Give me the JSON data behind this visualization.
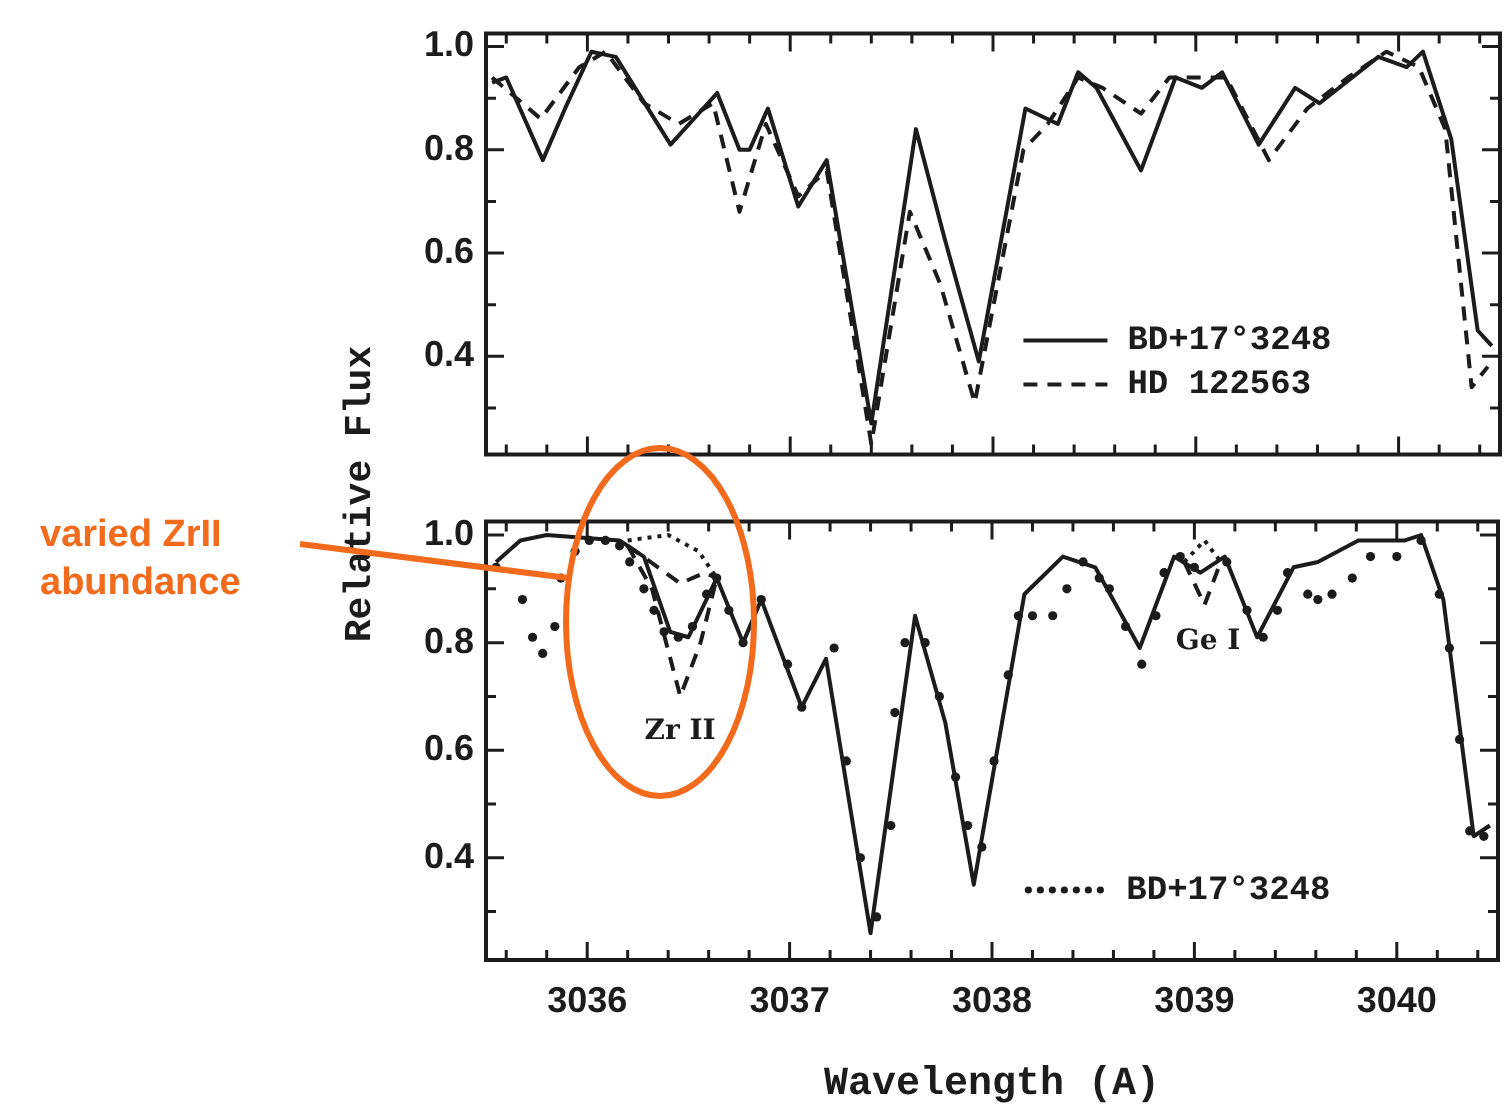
{
  "chart_data": [
    {
      "type": "line",
      "ylabel": "Relative Flux",
      "tick_labels": "y",
      "legend": "bottom right",
      "xlim": [
        3035.5,
        3040.5
      ],
      "xticks": [
        {
          "value": 3035.6,
          "label": null
        },
        {
          "value": 3035.8,
          "label": null
        },
        3036,
        {
          "value": 3036.2,
          "label": null
        },
        {
          "value": 3036.4,
          "label": null
        },
        {
          "value": 3036.6,
          "label": null
        },
        {
          "value": 3036.8,
          "label": null
        },
        3037,
        {
          "value": 3037.2,
          "label": null
        },
        {
          "value": 3037.4,
          "label": null
        },
        {
          "value": 3037.6,
          "label": null
        },
        {
          "value": 3037.8,
          "label": null
        },
        3038,
        {
          "value": 3038.2,
          "label": null
        },
        {
          "value": 3038.4,
          "label": null
        },
        {
          "value": 3038.6,
          "label": null
        },
        {
          "value": 3038.8,
          "label": null
        },
        3039,
        {
          "value": 3039.2,
          "label": null
        },
        {
          "value": 3039.4,
          "label": null
        },
        {
          "value": 3039.6,
          "label": null
        },
        {
          "value": 3039.8,
          "label": null
        },
        3040,
        {
          "value": 3040.2,
          "label": null
        },
        {
          "value": 3040.4,
          "label": null
        }
      ],
      "ylim": [
        0.21,
        1.025
      ],
      "yticks": [
        {
          "value": 0.3,
          "label": null
        },
        0.4,
        {
          "value": 0.5,
          "label": null
        },
        0.6,
        {
          "value": 0.7,
          "label": null
        },
        0.8,
        {
          "value": 0.9,
          "label": null
        },
        {
          "value": 1,
          "label": "1.0"
        }
      ],
      "series": [
        {
          "name": "BD+17°3248",
          "color": "#1c1c1c",
          "line_style": "solid",
          "x": [
            3035.53,
            3035.6,
            3035.78,
            3035.89,
            3036.02,
            3036.14,
            3036.41,
            3036.64,
            3036.75,
            3036.8,
            3036.89,
            3037.04,
            3037.18,
            3037.4,
            3037.62,
            3037.76,
            3037.93,
            3038.16,
            3038.32,
            3038.42,
            3038.51,
            3038.73,
            3038.9,
            3039.03,
            3039.13,
            3039.31,
            3039.49,
            3039.61,
            3039.9,
            3040.04,
            3040.12,
            3040.26,
            3040.39,
            3040.46
          ],
          "values": [
            0.93,
            0.94,
            0.78,
            0.88,
            0.99,
            0.98,
            0.81,
            0.91,
            0.8,
            0.8,
            0.88,
            0.69,
            0.78,
            0.27,
            0.84,
            0.63,
            0.39,
            0.88,
            0.85,
            0.95,
            0.92,
            0.76,
            0.94,
            0.92,
            0.95,
            0.81,
            0.92,
            0.89,
            0.98,
            0.96,
            0.99,
            0.82,
            0.45,
            0.42
          ]
        },
        {
          "name": "HD 122563",
          "color": "#1c1c1c",
          "line_style": "dashed",
          "x": [
            3035.53,
            3035.77,
            3035.96,
            3036.09,
            3036.28,
            3036.45,
            3036.62,
            3036.75,
            3036.88,
            3037.04,
            3037.18,
            3037.4,
            3037.59,
            3037.74,
            3037.91,
            3038.15,
            3038.27,
            3038.42,
            3038.54,
            3038.73,
            3038.87,
            3039.03,
            3039.15,
            3039.36,
            3039.55,
            3039.75,
            3039.94,
            3040.1,
            3040.23,
            3040.36,
            3040.44
          ],
          "values": [
            0.94,
            0.86,
            0.96,
            0.99,
            0.89,
            0.85,
            0.89,
            0.68,
            0.85,
            0.71,
            0.76,
            0.23,
            0.68,
            0.54,
            0.31,
            0.8,
            0.85,
            0.94,
            0.92,
            0.87,
            0.94,
            0.94,
            0.94,
            0.78,
            0.88,
            0.94,
            0.99,
            0.96,
            0.84,
            0.34,
            0.38
          ]
        }
      ]
    },
    {
      "type": "line",
      "xlabel": "Wavelength (A)",
      "legend": "bottom right",
      "xlim": [
        3035.5,
        3040.5
      ],
      "xticks": [
        {
          "value": 3035.6,
          "label": null
        },
        {
          "value": 3035.8,
          "label": null
        },
        3036,
        {
          "value": 3036.2,
          "label": null
        },
        {
          "value": 3036.4,
          "label": null
        },
        {
          "value": 3036.6,
          "label": null
        },
        {
          "value": 3036.8,
          "label": null
        },
        3037,
        {
          "value": 3037.2,
          "label": null
        },
        {
          "value": 3037.4,
          "label": null
        },
        {
          "value": 3037.6,
          "label": null
        },
        {
          "value": 3037.8,
          "label": null
        },
        3038,
        {
          "value": 3038.2,
          "label": null
        },
        {
          "value": 3038.4,
          "label": null
        },
        {
          "value": 3038.6,
          "label": null
        },
        {
          "value": 3038.8,
          "label": null
        },
        3039,
        {
          "value": 3039.2,
          "label": null
        },
        {
          "value": 3039.4,
          "label": null
        },
        {
          "value": 3039.6,
          "label": null
        },
        {
          "value": 3039.8,
          "label": null
        },
        3040,
        {
          "value": 3040.2,
          "label": null
        },
        {
          "value": 3040.4,
          "label": null
        }
      ],
      "ylim": [
        0.21,
        1.025
      ],
      "yticks": [
        {
          "value": 0.3,
          "label": null
        },
        0.4,
        {
          "value": 0.5,
          "label": null
        },
        0.6,
        {
          "value": 0.7,
          "label": null
        },
        0.8,
        {
          "value": 0.9,
          "label": null
        },
        {
          "value": 1,
          "label": "1.0"
        }
      ],
      "annotations": [
        "varied ZrII abundance",
        "Zr II",
        "Ge I"
      ],
      "series": [
        {
          "color": "#1c1c1c",
          "line_style": "solid",
          "x": [
            3035.55,
            3035.67,
            3035.8,
            3036.16,
            3036.28,
            3036.41,
            3036.5,
            3036.64,
            3036.77,
            3036.86,
            3037.06,
            3037.18,
            3037.4,
            3037.62,
            3037.77,
            3037.91,
            3038.16,
            3038.35,
            3038.51,
            3038.73,
            3038.9,
            3039.03,
            3039.15,
            3039.31,
            3039.49,
            3039.61,
            3039.81,
            3040.04,
            3040.12,
            3040.23,
            3040.38,
            3040.46
          ],
          "values": [
            0.95,
            0.99,
            1.0,
            0.99,
            0.96,
            0.82,
            0.81,
            0.92,
            0.8,
            0.88,
            0.68,
            0.77,
            0.26,
            0.85,
            0.65,
            0.35,
            0.89,
            0.96,
            0.94,
            0.79,
            0.96,
            0.93,
            0.96,
            0.81,
            0.94,
            0.95,
            0.99,
            0.99,
            1.0,
            0.88,
            0.44,
            0.46
          ]
        },
        {
          "color": "#1c1c1c",
          "line_style": "dashed",
          "x": [
            3036.2,
            3036.35,
            3036.46,
            3036.58,
            3036.64
          ],
          "values": [
            0.98,
            0.94,
            0.91,
            0.93,
            0.92
          ]
        },
        {
          "color": "#1c1c1c",
          "line_style": "dashed",
          "x": [
            3036.2,
            3036.32,
            3036.46,
            3036.56,
            3036.64
          ],
          "values": [
            0.98,
            0.9,
            0.7,
            0.8,
            0.92
          ]
        },
        {
          "color": "#1c1c1c",
          "line_style": "dashed",
          "x": [
            3038.95,
            3039.05,
            3039.13
          ],
          "values": [
            0.95,
            0.87,
            0.95
          ]
        },
        {
          "color": "#1c1c1c",
          "line_style": "dotted",
          "x": [
            3036.2,
            3036.4,
            3036.55,
            3036.64
          ],
          "values": [
            0.99,
            1.0,
            0.97,
            0.92
          ]
        },
        {
          "color": "#1c1c1c",
          "line_style": "dotted",
          "x": [
            3038.95,
            3039.05,
            3039.13
          ],
          "values": [
            0.95,
            0.99,
            0.95
          ]
        },
        {
          "name": "BD+17°3248",
          "type": "scatter",
          "marker": "circle",
          "color": "#1c1c1c",
          "x": [
            3035.55,
            3035.68,
            3035.73,
            3035.78,
            3035.84,
            3035.87,
            3035.94,
            3036.01,
            3036.09,
            3036.16,
            3036.21,
            3036.28,
            3036.33,
            3036.38,
            3036.45,
            3036.52,
            3036.59,
            3036.64,
            3036.7,
            3036.77,
            3036.86,
            3036.99,
            3037.06,
            3037.22,
            3037.28,
            3037.35,
            3037.43,
            3037.5,
            3037.52,
            3037.57,
            3037.67,
            3037.74,
            3037.82,
            3037.88,
            3037.95,
            3038.01,
            3038.08,
            3038.13,
            3038.2,
            3038.3,
            3038.37,
            3038.45,
            3038.53,
            3038.58,
            3038.66,
            3038.74,
            3038.81,
            3038.85,
            3038.93,
            3039.0,
            3039.16,
            3039.26,
            3039.34,
            3039.41,
            3039.46,
            3039.56,
            3039.61,
            3039.68,
            3039.78,
            3039.87,
            3040.0,
            3040.12,
            3040.21,
            3040.26,
            3040.31,
            3040.36,
            3040.43
          ],
          "values": [
            0.94,
            0.88,
            0.81,
            0.78,
            0.83,
            0.92,
            0.97,
            0.99,
            0.99,
            0.98,
            0.95,
            0.9,
            0.86,
            0.82,
            0.81,
            0.83,
            0.89,
            0.92,
            0.86,
            0.8,
            0.88,
            0.76,
            0.68,
            0.79,
            0.58,
            0.4,
            0.29,
            0.46,
            0.67,
            0.8,
            0.8,
            0.7,
            0.55,
            0.46,
            0.42,
            0.58,
            0.74,
            0.85,
            0.85,
            0.85,
            0.9,
            0.95,
            0.92,
            0.9,
            0.83,
            0.76,
            0.85,
            0.93,
            0.96,
            0.94,
            0.95,
            0.86,
            0.81,
            0.86,
            0.93,
            0.89,
            0.88,
            0.89,
            0.92,
            0.96,
            0.96,
            0.99,
            0.89,
            0.79,
            0.62,
            0.45,
            0.44
          ]
        }
      ]
    }
  ]
}
